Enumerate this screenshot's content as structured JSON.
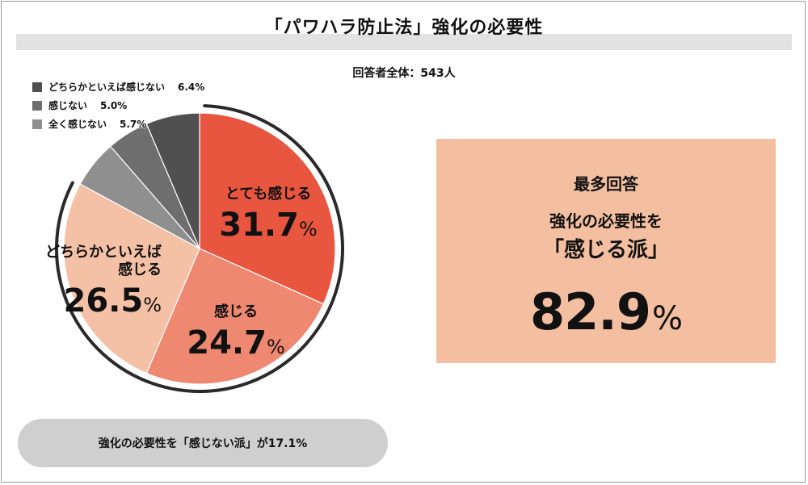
{
  "header": {
    "title": "「パワハラ防止法」強化の必要性",
    "respondents": "回答者全体：543人"
  },
  "chart_data": {
    "type": "pie",
    "categories": [
      "とても感じる",
      "感じる",
      "どちらかといえば感じる",
      "全く感じない",
      "感じない",
      "どちらかといえば感じない"
    ],
    "values": [
      31.7,
      24.7,
      26.5,
      5.7,
      5.0,
      6.4
    ],
    "colors": [
      "#e85640",
      "#ee8870",
      "#f5c1a6",
      "#8f8f8f",
      "#6e6e6e",
      "#505050"
    ],
    "labels": [
      {
        "line1": "とても感じる",
        "line2": "",
        "value": "31.7"
      },
      {
        "line1": "感じる",
        "line2": "",
        "value": "24.7"
      },
      {
        "line1": "どちらかといえば",
        "line2": "感じる",
        "value": "26.5"
      }
    ],
    "legend": [
      {
        "label": "どちらかといえば感じない",
        "value": "6.4%",
        "color": "#505050"
      },
      {
        "label": "感じない",
        "value": "5.0%",
        "color": "#6e6e6e"
      },
      {
        "label": "全く感じない",
        "value": "5.7%",
        "color": "#8f8f8f"
      }
    ],
    "percent_sign": "%",
    "start_angle_deg": 0,
    "direction": "clockwise"
  },
  "callout": {
    "heading": "最多回答",
    "line1": "強化の必要性を",
    "line2": "「感じる派」",
    "total": "82.9",
    "percent_sign": "%"
  },
  "summary_pill": "強化の必要性を「感じない派」が17.1%"
}
